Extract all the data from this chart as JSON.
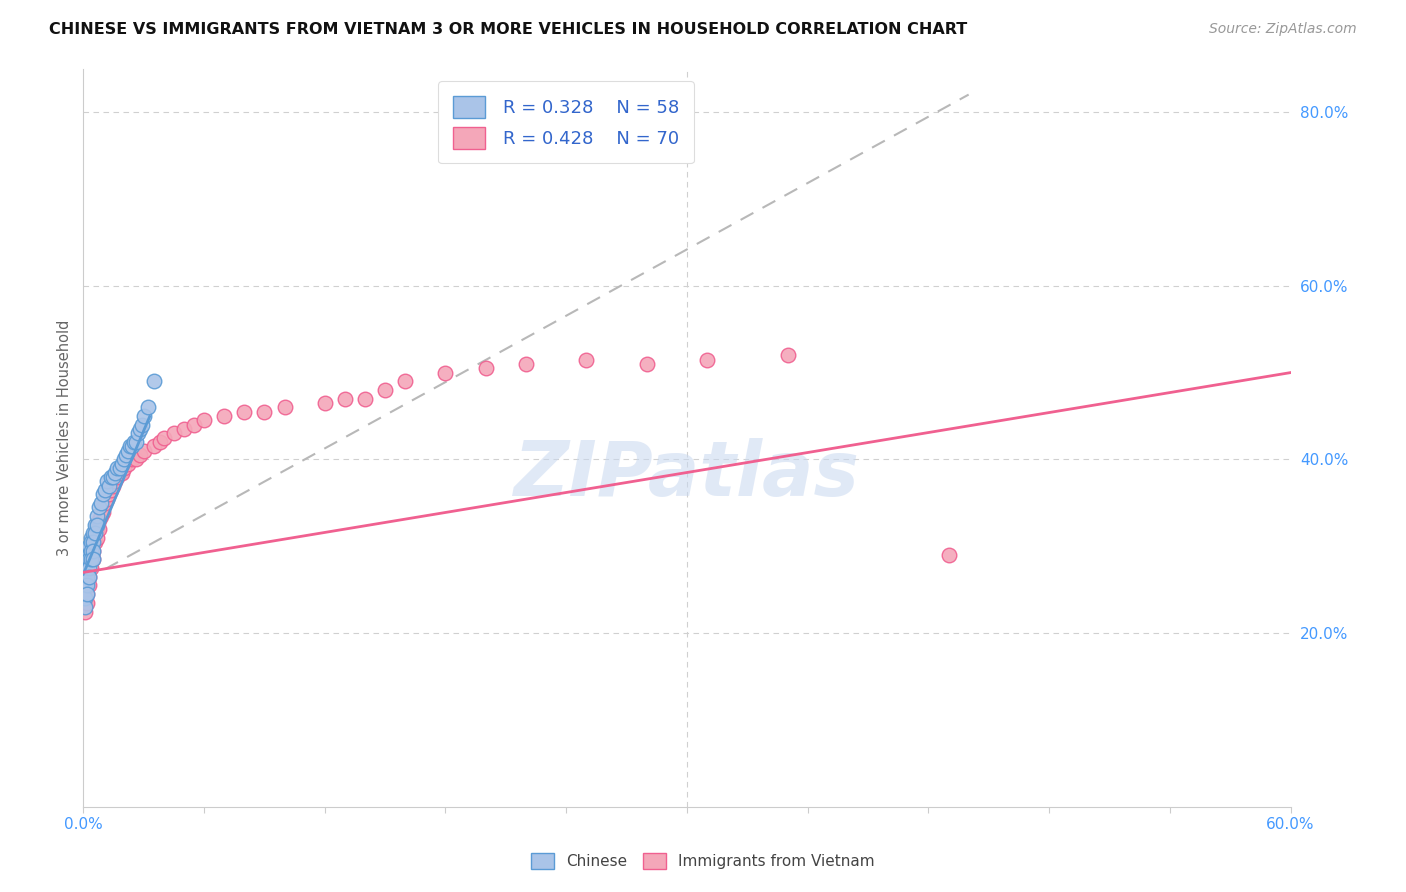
{
  "title": "CHINESE VS IMMIGRANTS FROM VIETNAM 3 OR MORE VEHICLES IN HOUSEHOLD CORRELATION CHART",
  "source": "Source: ZipAtlas.com",
  "ylabel": "3 or more Vehicles in Household",
  "ylabel_right_ticks": [
    "20.0%",
    "40.0%",
    "60.0%",
    "80.0%"
  ],
  "ylabel_right_vals": [
    0.2,
    0.4,
    0.6,
    0.8
  ],
  "xlim": [
    0.0,
    0.6
  ],
  "ylim": [
    0.0,
    0.85
  ],
  "legend_chinese_R": "R = 0.328",
  "legend_chinese_N": "N = 58",
  "legend_vietnam_R": "R = 0.428",
  "legend_vietnam_N": "N = 70",
  "chinese_color": "#aac4e8",
  "vietnam_color": "#f4a7b9",
  "chinese_line_color": "#5b9bd5",
  "vietnam_line_color": "#f06090",
  "trendline_dash_color": "#b8b8b8",
  "watermark_color": "#c8d8f0",
  "chinese_x": [
    0.0,
    0.0,
    0.001,
    0.001,
    0.001,
    0.001,
    0.001,
    0.001,
    0.001,
    0.001,
    0.002,
    0.002,
    0.002,
    0.002,
    0.002,
    0.002,
    0.003,
    0.003,
    0.003,
    0.003,
    0.003,
    0.004,
    0.004,
    0.004,
    0.004,
    0.005,
    0.005,
    0.005,
    0.005,
    0.006,
    0.006,
    0.007,
    0.007,
    0.008,
    0.009,
    0.01,
    0.011,
    0.012,
    0.013,
    0.014,
    0.015,
    0.016,
    0.017,
    0.018,
    0.019,
    0.02,
    0.021,
    0.022,
    0.023,
    0.024,
    0.025,
    0.026,
    0.027,
    0.028,
    0.029,
    0.03,
    0.032,
    0.035
  ],
  "chinese_y": [
    0.27,
    0.265,
    0.28,
    0.275,
    0.29,
    0.285,
    0.26,
    0.255,
    0.24,
    0.23,
    0.295,
    0.285,
    0.275,
    0.265,
    0.255,
    0.245,
    0.3,
    0.29,
    0.285,
    0.275,
    0.265,
    0.31,
    0.305,
    0.295,
    0.285,
    0.315,
    0.305,
    0.295,
    0.285,
    0.325,
    0.315,
    0.335,
    0.325,
    0.345,
    0.35,
    0.36,
    0.365,
    0.375,
    0.37,
    0.38,
    0.38,
    0.385,
    0.39,
    0.39,
    0.395,
    0.4,
    0.405,
    0.41,
    0.415,
    0.415,
    0.42,
    0.42,
    0.43,
    0.435,
    0.44,
    0.45,
    0.46,
    0.49
  ],
  "vietnam_x": [
    0.0,
    0.0,
    0.001,
    0.001,
    0.001,
    0.001,
    0.001,
    0.001,
    0.002,
    0.002,
    0.002,
    0.002,
    0.002,
    0.003,
    0.003,
    0.003,
    0.003,
    0.004,
    0.004,
    0.004,
    0.005,
    0.005,
    0.005,
    0.006,
    0.006,
    0.007,
    0.007,
    0.008,
    0.008,
    0.009,
    0.01,
    0.011,
    0.012,
    0.013,
    0.014,
    0.015,
    0.016,
    0.017,
    0.018,
    0.019,
    0.02,
    0.022,
    0.024,
    0.026,
    0.028,
    0.03,
    0.035,
    0.038,
    0.04,
    0.045,
    0.05,
    0.055,
    0.06,
    0.07,
    0.08,
    0.09,
    0.1,
    0.12,
    0.13,
    0.14,
    0.15,
    0.16,
    0.18,
    0.2,
    0.22,
    0.25,
    0.28,
    0.31,
    0.35,
    0.43
  ],
  "vietnam_y": [
    0.255,
    0.245,
    0.27,
    0.265,
    0.255,
    0.245,
    0.235,
    0.225,
    0.275,
    0.265,
    0.255,
    0.245,
    0.235,
    0.285,
    0.275,
    0.265,
    0.255,
    0.295,
    0.285,
    0.275,
    0.305,
    0.295,
    0.285,
    0.315,
    0.305,
    0.32,
    0.31,
    0.33,
    0.32,
    0.335,
    0.34,
    0.35,
    0.355,
    0.36,
    0.365,
    0.37,
    0.375,
    0.38,
    0.385,
    0.385,
    0.39,
    0.395,
    0.4,
    0.4,
    0.405,
    0.41,
    0.415,
    0.42,
    0.425,
    0.43,
    0.435,
    0.44,
    0.445,
    0.45,
    0.455,
    0.455,
    0.46,
    0.465,
    0.47,
    0.47,
    0.48,
    0.49,
    0.5,
    0.505,
    0.51,
    0.515,
    0.51,
    0.515,
    0.52,
    0.29
  ],
  "dash_line_x": [
    0.0,
    0.44
  ],
  "dash_line_y": [
    0.26,
    0.82
  ],
  "chinese_trend_x": [
    0.0,
    0.035
  ],
  "chinese_trend_y_intercept": 0.268,
  "chinese_trend_slope": 5.5,
  "vietnam_trend_x_start": 0.0,
  "vietnam_trend_x_end": 0.6,
  "vietnam_trend_y_start": 0.27,
  "vietnam_trend_y_end": 0.5
}
